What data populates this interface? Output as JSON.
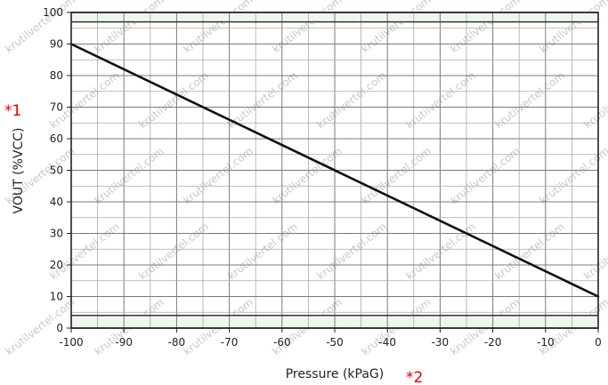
{
  "chart_data": {
    "type": "line",
    "xlabel": "Pressure (kPaG)",
    "ylabel": "VOUT (%VCC)",
    "xlim": [
      -100,
      0
    ],
    "ylim": [
      0,
      100
    ],
    "x_ticks": [
      -100,
      -90,
      -80,
      -70,
      -60,
      -50,
      -40,
      -30,
      -20,
      -10,
      0
    ],
    "y_ticks": [
      0,
      10,
      20,
      30,
      40,
      50,
      60,
      70,
      80,
      90,
      100
    ],
    "grid": true,
    "shaded_bands": [
      {
        "y_from": 97,
        "y_to": 100,
        "color": "#eef7ec"
      },
      {
        "y_from": 0,
        "y_to": 4,
        "color": "#eef7ec"
      }
    ],
    "series": [
      {
        "x": [
          -100,
          0
        ],
        "y": [
          90,
          10
        ],
        "color": "#111111"
      }
    ]
  },
  "annotations": {
    "marker_1": "*1",
    "marker_2": "*2"
  },
  "watermark": "krutilvertel.com"
}
